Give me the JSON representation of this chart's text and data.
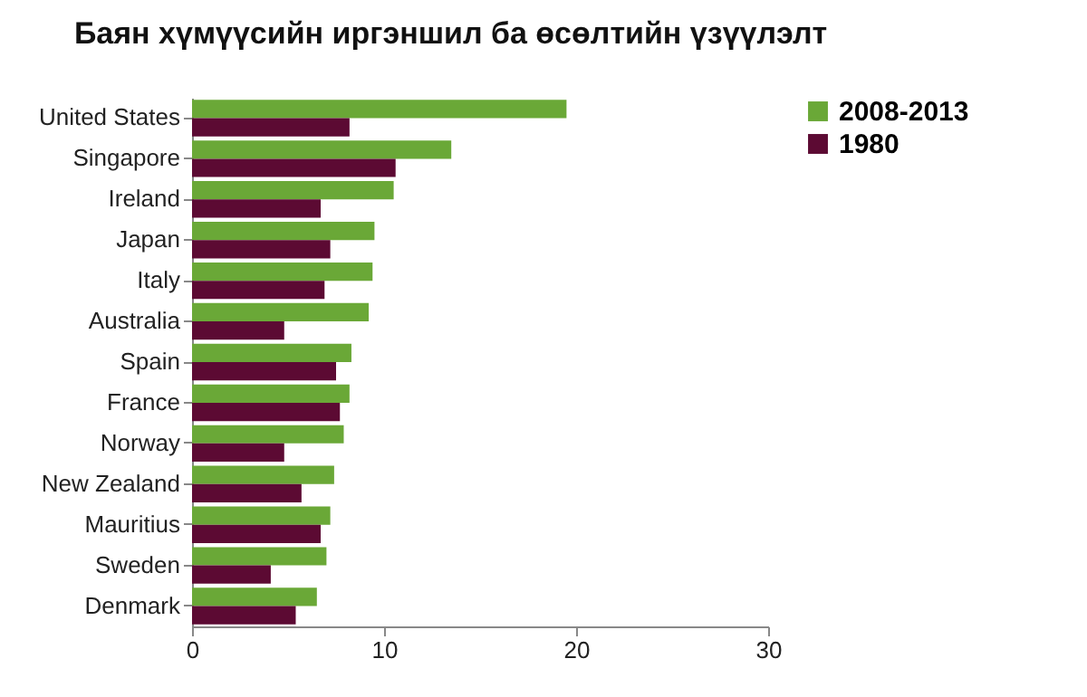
{
  "chart_data": {
    "type": "bar",
    "orientation": "horizontal",
    "title": "Баян хүмүүсийн иргэншил ба өсөлтийн үзүүлэлт",
    "categories": [
      "United States",
      "Singapore",
      "Ireland",
      "Japan",
      "Italy",
      "Australia",
      "Spain",
      "France",
      "Norway",
      "New Zealand",
      "Mauritius",
      "Sweden",
      "Denmark"
    ],
    "series": [
      {
        "name": "2008-2013",
        "color": "#6aa837",
        "values": [
          19.5,
          13.5,
          10.5,
          9.5,
          9.4,
          9.2,
          8.3,
          8.2,
          7.9,
          7.4,
          7.2,
          7.0,
          6.5
        ]
      },
      {
        "name": "1980",
        "color": "#5c0a33",
        "values": [
          8.2,
          10.6,
          6.7,
          7.2,
          6.9,
          4.8,
          7.5,
          7.7,
          4.8,
          5.7,
          6.7,
          4.1,
          5.4
        ]
      }
    ],
    "xlim": [
      0,
      30
    ],
    "xticks": [
      0,
      10,
      20,
      30
    ],
    "grid": false,
    "legend": "right"
  }
}
